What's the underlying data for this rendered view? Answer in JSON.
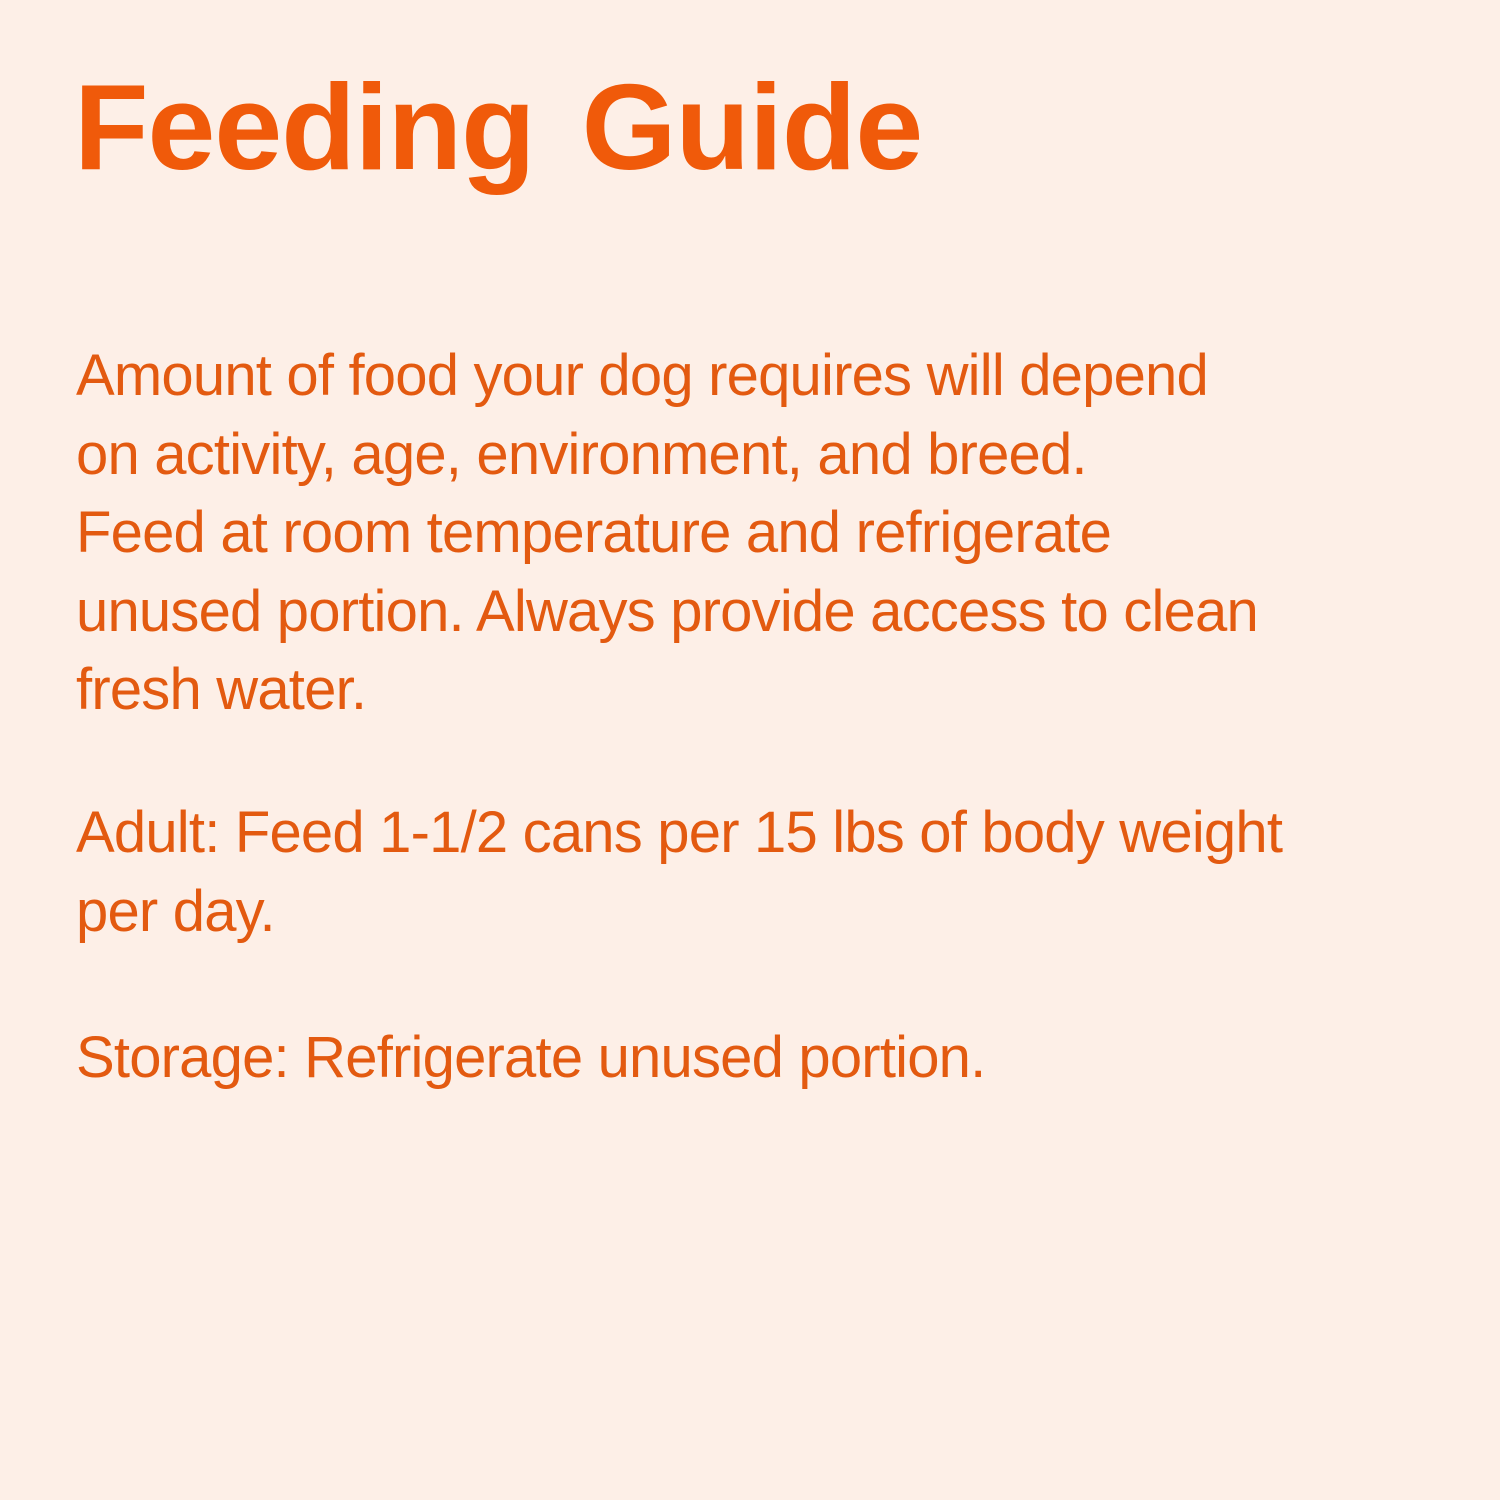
{
  "title": "Feeding  Guide",
  "paragraphs": [
    {
      "lines": [
        "Amount of food your dog requires will depend",
        "on activity, age, environment, and breed.",
        "Feed at room temperature and refrigerate",
        "unused portion. Always provide access to clean",
        "fresh water."
      ]
    },
    {
      "lines": [
        "Adult: Feed 1-1/2 cans per 15 lbs of body weight",
        "per day."
      ]
    },
    {
      "lines": [
        "Storage: Refrigerate unused portion."
      ]
    }
  ],
  "colors": {
    "background": "#fdefe7",
    "title": "#f05a0a",
    "text": "#e35a10"
  }
}
